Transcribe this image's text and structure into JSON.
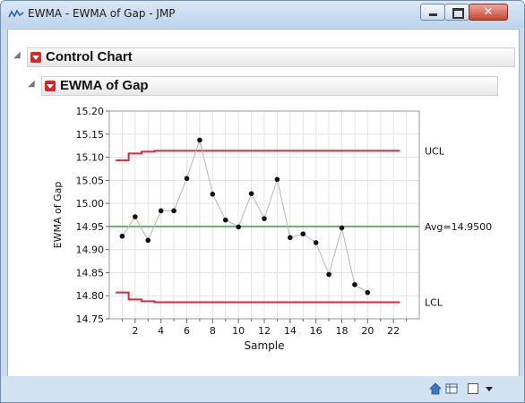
{
  "window": {
    "title": "EWMA - EWMA of Gap - JMP",
    "close_glyph": "✕"
  },
  "report": {
    "outline1_title": "Control Chart",
    "outline2_title": "EWMA of Gap"
  },
  "chart_data": {
    "type": "line",
    "title": "",
    "xlabel": "Sample",
    "ylabel": "EWMA of Gap",
    "xlim": [
      0,
      24
    ],
    "ylim": [
      14.75,
      15.2
    ],
    "x_ticks": [
      2,
      4,
      6,
      8,
      10,
      12,
      14,
      16,
      18,
      20,
      22
    ],
    "y_ticks": [
      14.75,
      14.8,
      14.85,
      14.9,
      14.95,
      15.0,
      15.05,
      15.1,
      15.15,
      15.2
    ],
    "grid": true,
    "x": [
      1,
      2,
      3,
      4,
      5,
      6,
      7,
      8,
      9,
      10,
      11,
      12,
      13,
      14,
      15,
      16,
      17,
      18,
      19,
      20
    ],
    "values": [
      14.929,
      14.971,
      14.92,
      14.984,
      14.984,
      15.054,
      15.137,
      15.02,
      14.964,
      14.949,
      15.021,
      14.967,
      15.052,
      14.926,
      14.934,
      14.915,
      14.846,
      14.947,
      14.824,
      14.807
    ],
    "center": {
      "value": 14.95,
      "label": "Avg=14.9500",
      "color": "#3aa03a"
    },
    "ucl": {
      "label": "UCL",
      "color": "#e0263b",
      "steps": [
        [
          1,
          15.093
        ],
        [
          2,
          15.108
        ],
        [
          3,
          15.112
        ],
        [
          4,
          15.114
        ],
        [
          5,
          15.114
        ],
        [
          22.5,
          15.114
        ]
      ]
    },
    "lcl": {
      "label": "LCL",
      "color": "#e0263b",
      "steps": [
        [
          1,
          14.807
        ],
        [
          2,
          14.792
        ],
        [
          3,
          14.788
        ],
        [
          4,
          14.786
        ],
        [
          5,
          14.786
        ],
        [
          22.5,
          14.786
        ]
      ]
    }
  },
  "statusbar": {
    "icons": [
      "home-icon",
      "table-icon",
      "checkbox-icon",
      "dropdown-arrow-icon"
    ]
  }
}
